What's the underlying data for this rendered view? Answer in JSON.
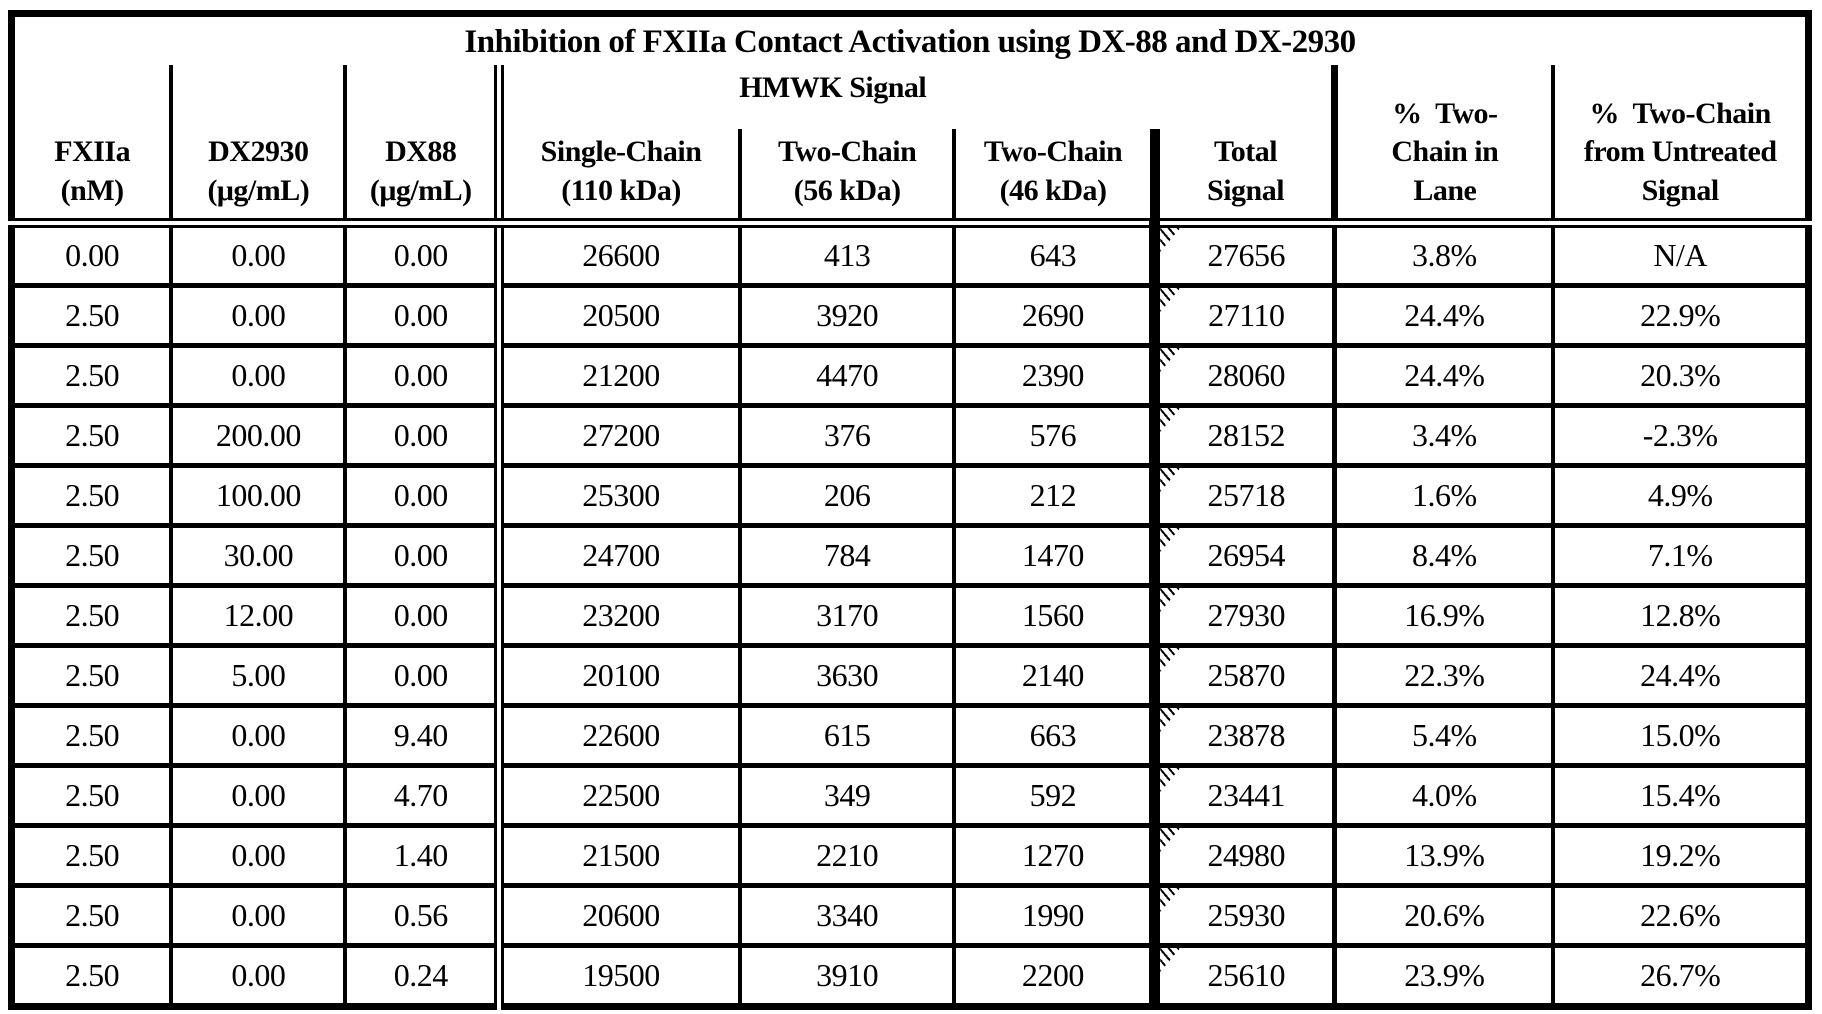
{
  "title": "Inhibition of FXIIa Contact Activation using DX-88 and DX-2930",
  "header": {
    "fxiia": "FXIIa\n(nM)",
    "dx2930": "DX2930\n(μg/mL)",
    "dx88": "DX88\n(μg/mL)",
    "hmwk_group": "HMWK Signal",
    "single_chain": "Single-Chain\n(110 kDa)",
    "two_chain_56": "Two-Chain\n(56 kDa)",
    "two_chain_46": "Two-Chain\n(46 kDa)",
    "total_signal": "Total\nSignal",
    "pct_two_chain_lane": "%  Two-\nChain in\nLane",
    "pct_two_chain_untreated": "%  Two-Chain\nfrom Untreated\nSignal"
  },
  "column_keys": [
    "fxiia",
    "dx2930",
    "dx88",
    "single_chain",
    "two_chain_56",
    "two_chain_46",
    "total_signal",
    "pct_two_chain_lane",
    "pct_two_chain_untreated"
  ],
  "rows": [
    {
      "fxiia": "0.00",
      "dx2930": "0.00",
      "dx88": "0.00",
      "single_chain": "26600",
      "two_chain_56": "413",
      "two_chain_46": "643",
      "total_signal": "27656",
      "pct_two_chain_lane": "3.8%",
      "pct_two_chain_untreated": "N/A"
    },
    {
      "fxiia": "2.50",
      "dx2930": "0.00",
      "dx88": "0.00",
      "single_chain": "20500",
      "two_chain_56": "3920",
      "two_chain_46": "2690",
      "total_signal": "27110",
      "pct_two_chain_lane": "24.4%",
      "pct_two_chain_untreated": "22.9%"
    },
    {
      "fxiia": "2.50",
      "dx2930": "0.00",
      "dx88": "0.00",
      "single_chain": "21200",
      "two_chain_56": "4470",
      "two_chain_46": "2390",
      "total_signal": "28060",
      "pct_two_chain_lane": "24.4%",
      "pct_two_chain_untreated": "20.3%"
    },
    {
      "fxiia": "2.50",
      "dx2930": "200.00",
      "dx88": "0.00",
      "single_chain": "27200",
      "two_chain_56": "376",
      "two_chain_46": "576",
      "total_signal": "28152",
      "pct_two_chain_lane": "3.4%",
      "pct_two_chain_untreated": "-2.3%"
    },
    {
      "fxiia": "2.50",
      "dx2930": "100.00",
      "dx88": "0.00",
      "single_chain": "25300",
      "two_chain_56": "206",
      "two_chain_46": "212",
      "total_signal": "25718",
      "pct_two_chain_lane": "1.6%",
      "pct_two_chain_untreated": "4.9%"
    },
    {
      "fxiia": "2.50",
      "dx2930": "30.00",
      "dx88": "0.00",
      "single_chain": "24700",
      "two_chain_56": "784",
      "two_chain_46": "1470",
      "total_signal": "26954",
      "pct_two_chain_lane": "8.4%",
      "pct_two_chain_untreated": "7.1%"
    },
    {
      "fxiia": "2.50",
      "dx2930": "12.00",
      "dx88": "0.00",
      "single_chain": "23200",
      "two_chain_56": "3170",
      "two_chain_46": "1560",
      "total_signal": "27930",
      "pct_two_chain_lane": "16.9%",
      "pct_two_chain_untreated": "12.8%"
    },
    {
      "fxiia": "2.50",
      "dx2930": "5.00",
      "dx88": "0.00",
      "single_chain": "20100",
      "two_chain_56": "3630",
      "two_chain_46": "2140",
      "total_signal": "25870",
      "pct_two_chain_lane": "22.3%",
      "pct_two_chain_untreated": "24.4%"
    },
    {
      "fxiia": "2.50",
      "dx2930": "0.00",
      "dx88": "9.40",
      "single_chain": "22600",
      "two_chain_56": "615",
      "two_chain_46": "663",
      "total_signal": "23878",
      "pct_two_chain_lane": "5.4%",
      "pct_two_chain_untreated": "15.0%"
    },
    {
      "fxiia": "2.50",
      "dx2930": "0.00",
      "dx88": "4.70",
      "single_chain": "22500",
      "two_chain_56": "349",
      "two_chain_46": "592",
      "total_signal": "23441",
      "pct_two_chain_lane": "4.0%",
      "pct_two_chain_untreated": "15.4%"
    },
    {
      "fxiia": "2.50",
      "dx2930": "0.00",
      "dx88": "1.40",
      "single_chain": "21500",
      "two_chain_56": "2210",
      "two_chain_46": "1270",
      "total_signal": "24980",
      "pct_two_chain_lane": "13.9%",
      "pct_two_chain_untreated": "19.2%"
    },
    {
      "fxiia": "2.50",
      "dx2930": "0.00",
      "dx88": "0.56",
      "single_chain": "20600",
      "two_chain_56": "3340",
      "two_chain_46": "1990",
      "total_signal": "25930",
      "pct_two_chain_lane": "20.6%",
      "pct_two_chain_untreated": "22.6%"
    },
    {
      "fxiia": "2.50",
      "dx2930": "0.00",
      "dx88": "0.24",
      "single_chain": "19500",
      "two_chain_56": "3910",
      "two_chain_46": "2200",
      "total_signal": "25610",
      "pct_two_chain_lane": "23.9%",
      "pct_two_chain_untreated": "26.7%"
    }
  ],
  "colors": {
    "ink": "#000000",
    "paper": "#ffffff"
  }
}
